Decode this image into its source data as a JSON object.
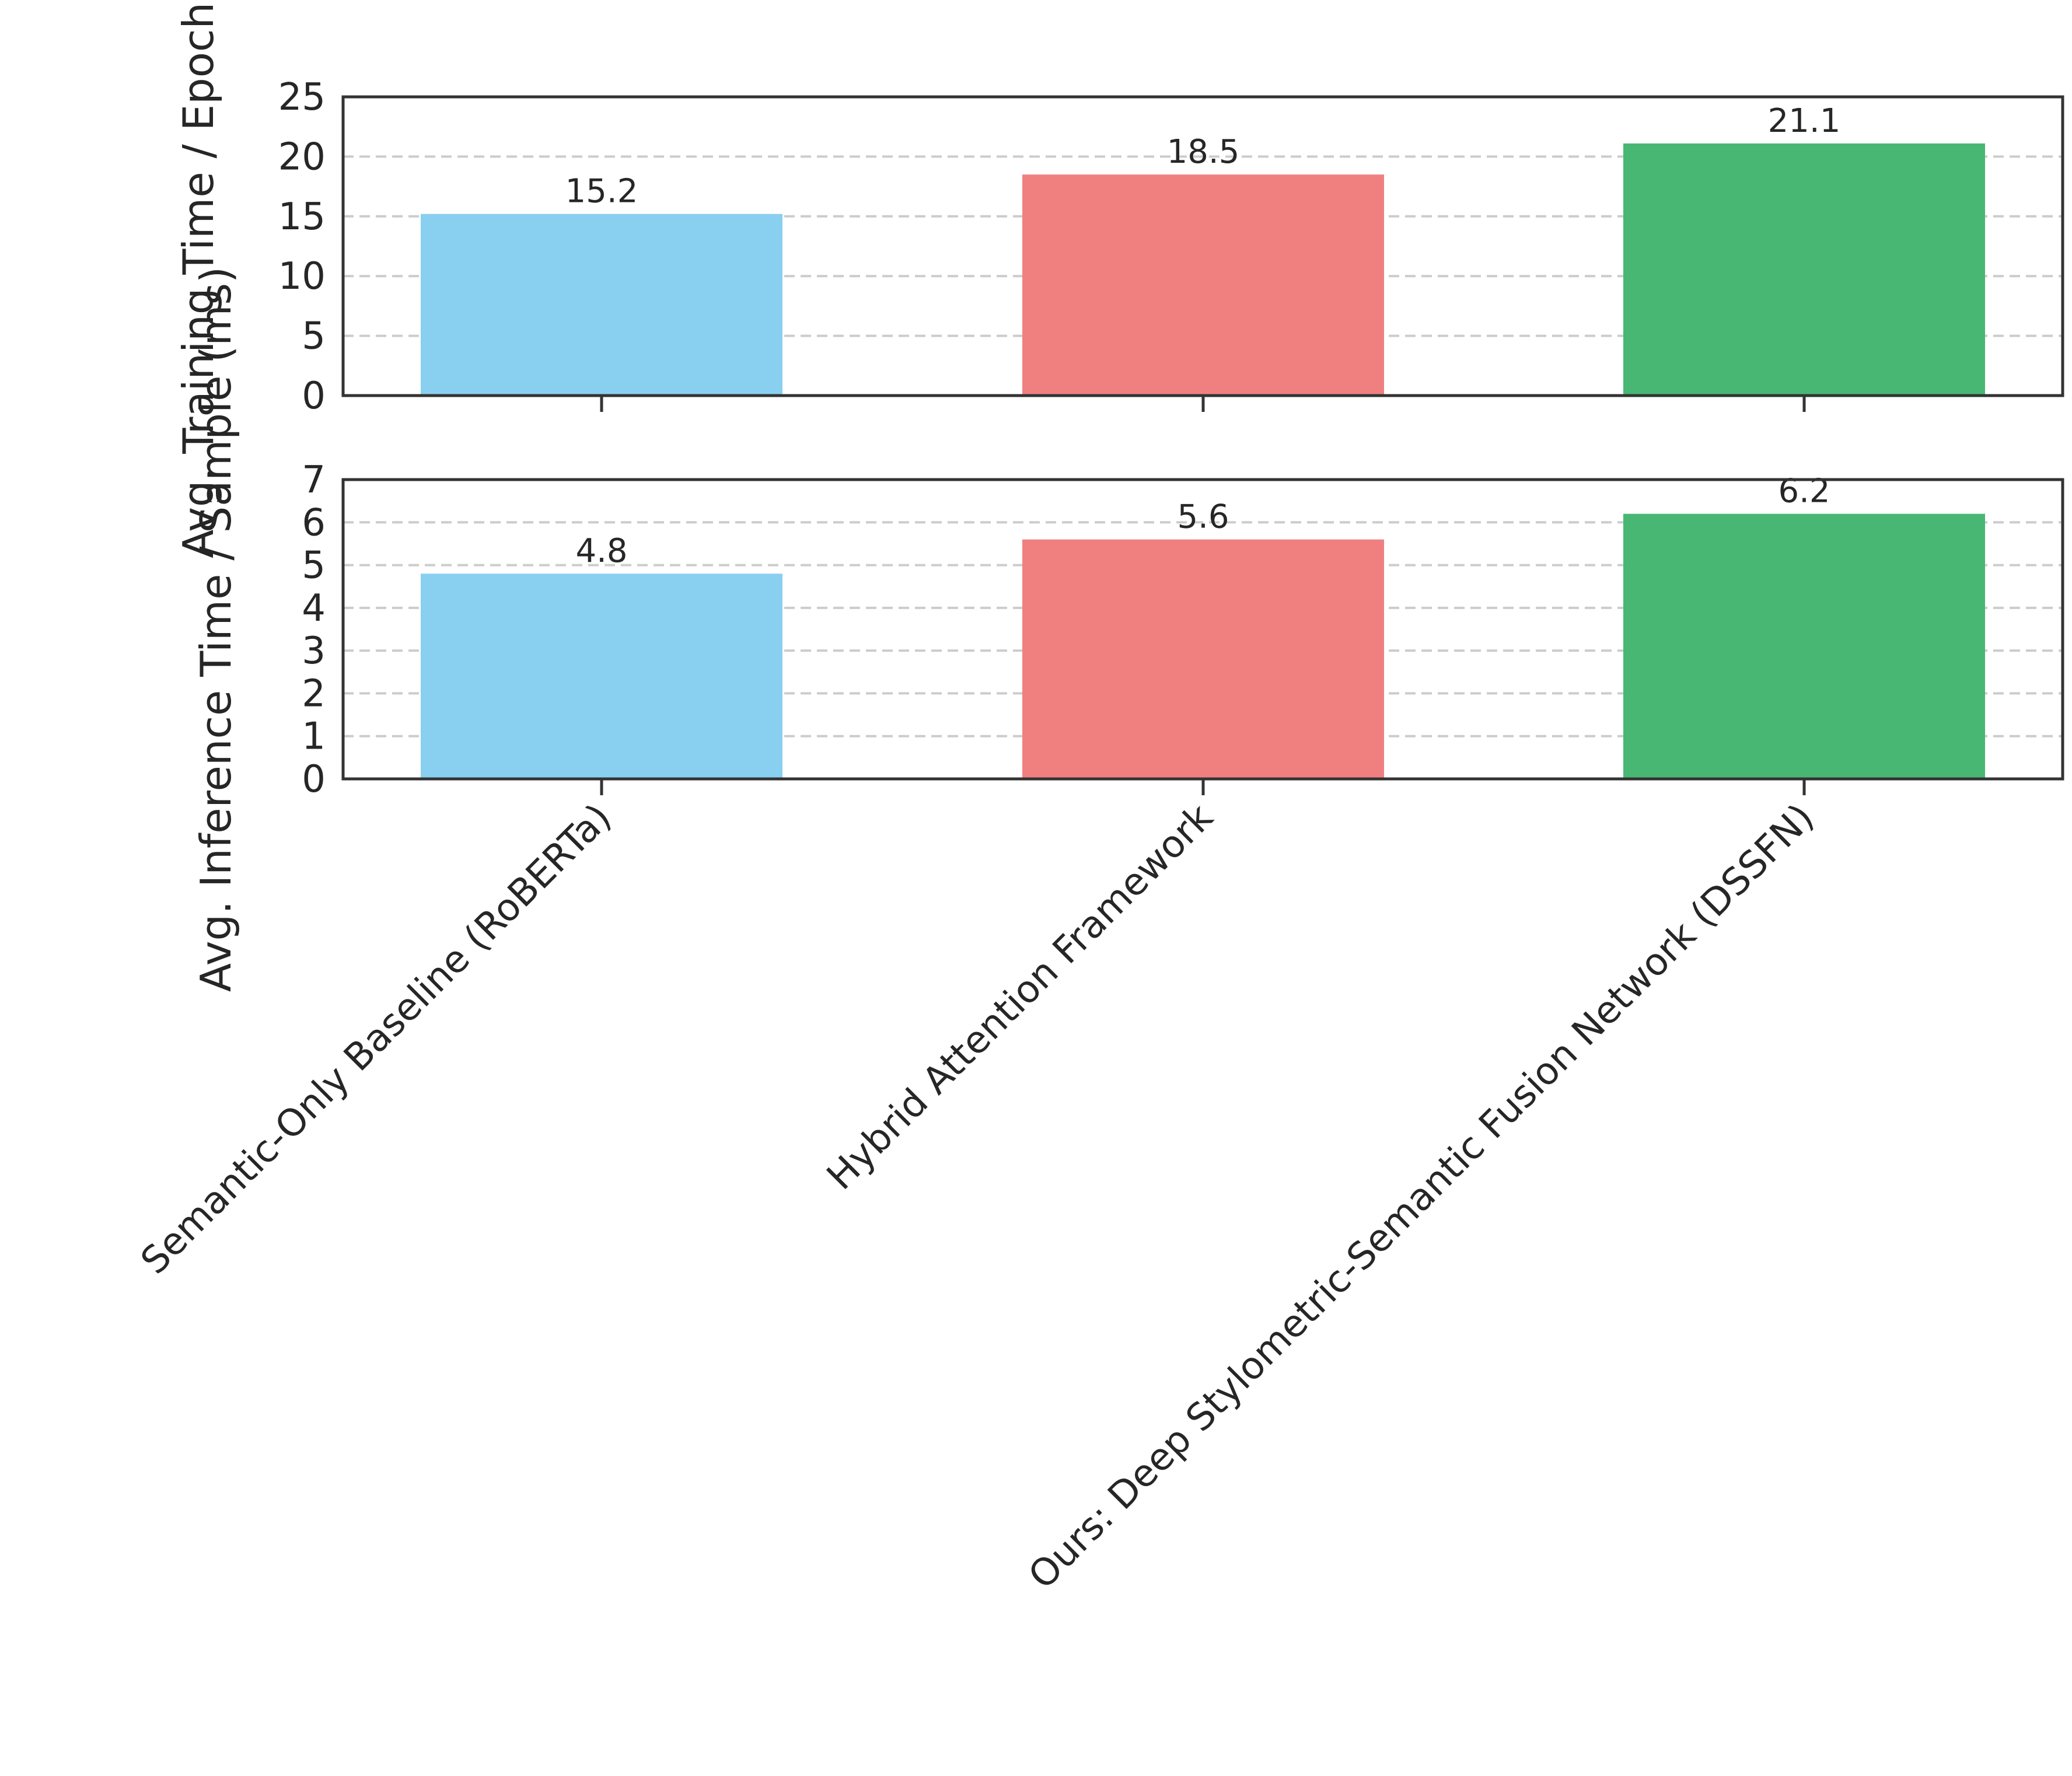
{
  "chart_data": [
    {
      "type": "bar",
      "categories": [
        "Semantic-Only Baseline (RoBERTa)",
        "Hybrid Attention Framework",
        "Ours: Deep Stylometric-Semantic Fusion Network (DSSFN)"
      ],
      "values": [
        15.2,
        18.5,
        21.1
      ],
      "value_labels": [
        "15.2",
        "18.5",
        "21.1"
      ],
      "colors": [
        "#89CFF0",
        "#F08080",
        "#48B774"
      ],
      "ylabel": "Avg. Training Time / Epoch (s)",
      "ylim": [
        0,
        25
      ],
      "yticks": [
        0,
        5,
        10,
        15,
        20,
        25
      ],
      "grid": true
    },
    {
      "type": "bar",
      "categories": [
        "Semantic-Only Baseline (RoBERTa)",
        "Hybrid Attention Framework",
        "Ours: Deep Stylometric-Semantic Fusion Network (DSSFN)"
      ],
      "values": [
        4.8,
        5.6,
        6.2
      ],
      "value_labels": [
        "4.8",
        "5.6",
        "6.2"
      ],
      "colors": [
        "#89CFF0",
        "#F08080",
        "#48B774"
      ],
      "ylabel": "Avg. Inference Time / Sample (ms)",
      "ylim": [
        0,
        7
      ],
      "yticks": [
        0,
        1,
        2,
        3,
        4,
        5,
        6,
        7
      ],
      "grid": true
    }
  ]
}
